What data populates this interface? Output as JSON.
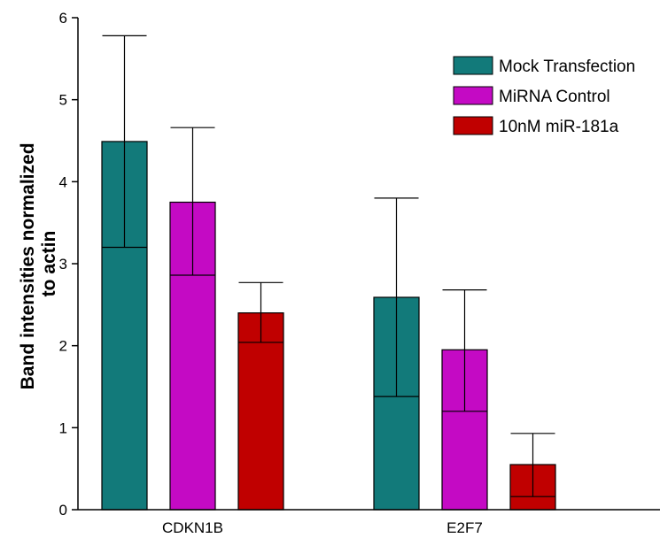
{
  "chart_data": {
    "type": "bar",
    "title": "",
    "xlabel": "",
    "ylabel_lines": [
      "Band intensities normalized",
      "to actin"
    ],
    "categories": [
      "CDKN1B",
      "E2F7"
    ],
    "ylim": [
      0,
      6
    ],
    "yticks": [
      0,
      1,
      2,
      3,
      4,
      5,
      6
    ],
    "grid": false,
    "legend_position": "top-right",
    "series": [
      {
        "name": "Mock Transfection",
        "color": "#127a7a",
        "values": [
          4.49,
          2.59
        ],
        "error_low": [
          3.2,
          1.38
        ],
        "error_high": [
          5.78,
          3.8
        ]
      },
      {
        "name": "MiRNA Control",
        "color": "#c40ac4",
        "values": [
          3.75,
          1.95
        ],
        "error_low": [
          2.86,
          1.2
        ],
        "error_high": [
          4.66,
          2.68
        ]
      },
      {
        "name": "10nM miR-181a",
        "color": "#c00000",
        "values": [
          2.4,
          0.55
        ],
        "error_low": [
          2.04,
          0.16
        ],
        "error_high": [
          2.77,
          0.93
        ]
      }
    ]
  }
}
